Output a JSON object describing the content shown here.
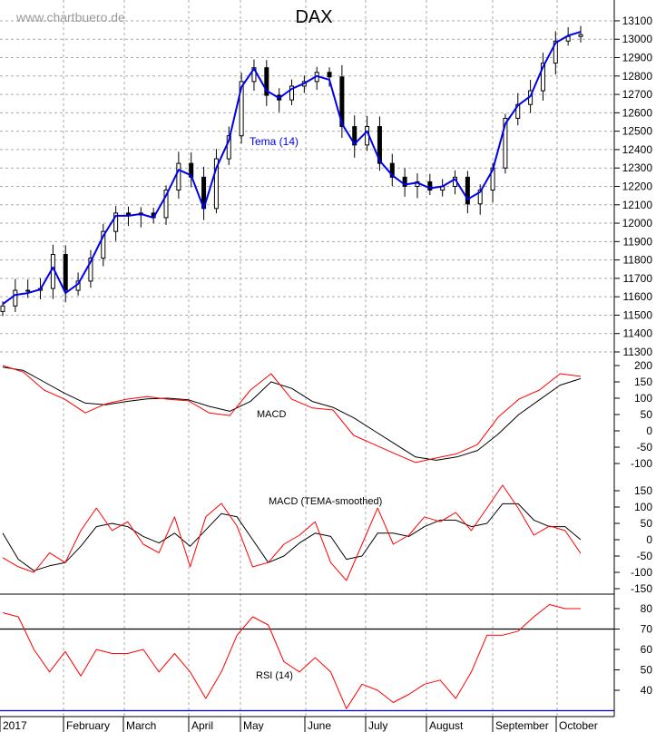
{
  "watermark": "www.chartbuero.de",
  "chart_data": [
    {
      "type": "line",
      "title": "DAX",
      "series": [
        {
          "name": "Tema (14)",
          "color": "#0000ee",
          "values": [
            11560,
            11610,
            11620,
            11640,
            11760,
            11620,
            11670,
            11790,
            11930,
            12040,
            12040,
            12050,
            12030,
            12150,
            12290,
            12260,
            12080,
            12300,
            12450,
            12740,
            12840,
            12720,
            12680,
            12730,
            12760,
            12800,
            12780,
            12540,
            12430,
            12500,
            12340,
            12260,
            12210,
            12220,
            12190,
            12200,
            12240,
            12130,
            12170,
            12290,
            12540,
            12640,
            12690,
            12850,
            12980,
            13020,
            13040
          ]
        },
        {
          "name": "",
          "role": "close",
          "values": [
            11550,
            11635,
            11635,
            11645,
            11830,
            11635,
            11685,
            11810,
            11955,
            12055,
            12045,
            12055,
            12030,
            12180,
            12325,
            12250,
            12080,
            12350,
            12475,
            12770,
            12845,
            12695,
            12670,
            12745,
            12770,
            12820,
            12795,
            12525,
            12425,
            12525,
            12325,
            12250,
            12200,
            12225,
            12180,
            12200,
            12250,
            12105,
            12180,
            12300,
            12570,
            12645,
            12720,
            12870,
            12990,
            13015,
            13025
          ]
        }
      ],
      "y_ticks": [
        13100,
        13000,
        12900,
        12800,
        12700,
        12600,
        12500,
        12400,
        12300,
        12200,
        12100,
        12000,
        11900,
        11800,
        11700,
        11600,
        11500,
        11400,
        11300
      ],
      "ylim": [
        11300,
        13150
      ],
      "grid": true
    },
    {
      "type": "line",
      "label": "MACD",
      "series": [
        {
          "color": "#ff0000",
          "values": [
            200,
            180,
            125,
            97,
            55,
            83,
            97,
            105,
            97,
            92,
            55,
            47,
            125,
            175,
            97,
            70,
            64,
            -14,
            -42,
            -70,
            -97,
            -83,
            -70,
            -42,
            42,
            97,
            125,
            175,
            167
          ]
        },
        {
          "color": "#000000",
          "values": [
            195,
            185,
            150,
            115,
            85,
            80,
            90,
            98,
            100,
            95,
            75,
            60,
            90,
            150,
            130,
            90,
            72,
            40,
            0,
            -40,
            -80,
            -90,
            -80,
            -60,
            -10,
            50,
            95,
            140,
            160
          ]
        }
      ],
      "y_ticks": [
        200,
        150,
        100,
        50,
        0,
        -50,
        -100
      ]
    },
    {
      "type": "line",
      "label": "MACD (TEMA-smoothed)",
      "series": [
        {
          "color": "#ff0000",
          "values": [
            -55,
            -83,
            -100,
            -40,
            -70,
            28,
            97,
            28,
            55,
            -14,
            -40,
            70,
            -83,
            70,
            111,
            42,
            -83,
            -70,
            -14,
            14,
            55,
            -70,
            -125,
            -14,
            97,
            -14,
            14,
            70,
            55,
            83,
            28,
            97,
            167,
            97,
            14,
            42,
            28,
            -42
          ]
        },
        {
          "color": "#000000",
          "values": [
            20,
            -60,
            -95,
            -80,
            -70,
            -20,
            40,
            50,
            40,
            10,
            -10,
            20,
            -20,
            30,
            80,
            70,
            0,
            -70,
            -50,
            -10,
            20,
            10,
            -60,
            -50,
            20,
            20,
            10,
            40,
            60,
            60,
            40,
            50,
            110,
            110,
            60,
            40,
            40,
            0
          ]
        }
      ],
      "y_ticks": [
        150,
        100,
        50,
        0,
        -50,
        -100,
        -150
      ]
    },
    {
      "type": "line",
      "label": "RSI (14)",
      "series": [
        {
          "color": "#ff0000",
          "values": [
            78,
            76,
            60,
            49,
            59,
            47,
            60,
            58,
            58,
            60,
            49,
            58,
            49,
            36,
            49,
            67,
            76,
            72,
            54,
            49,
            56,
            49,
            31,
            43,
            40,
            34,
            38,
            43,
            45,
            36,
            49,
            67,
            67,
            69,
            76,
            82,
            80,
            80
          ]
        }
      ],
      "reference_lines": [
        70,
        30
      ],
      "y_ticks": [
        80,
        70,
        60,
        50,
        40
      ]
    }
  ],
  "x_labels": [
    "2017",
    "February",
    "March",
    "April",
    "May",
    "June",
    "July",
    "August",
    "September",
    "October"
  ]
}
